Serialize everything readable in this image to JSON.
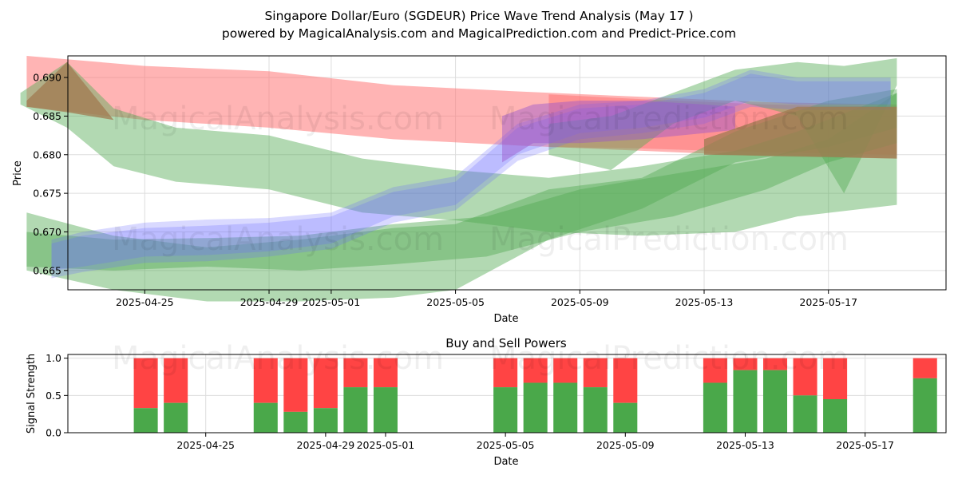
{
  "header": {
    "title": "Singapore Dollar/Euro (SGDEUR) Price Wave Trend Analysis (May 17 )",
    "subtitle": "powered by MagicalAnalysis.com and MagicalPrediction.com and Predict-Price.com"
  },
  "watermarks": [
    "MagicalAnalysis.com",
    "MagicalPrediction.com"
  ],
  "colors": {
    "red": "#ff4444",
    "green": "#4aa84a",
    "blue": "#5555ff",
    "price_red": "#ff7777",
    "price_green": "#55aa55",
    "price_blue": "#6666ff"
  },
  "chart_data": [
    {
      "type": "area",
      "title": "",
      "xlabel": "Date",
      "ylabel": "Price",
      "ylim": [
        0.6625,
        0.6928
      ],
      "x_start": "2025-04-21",
      "x_end": "2025-05-20",
      "xticks": [
        {
          "day": 4,
          "label": "2025-04-25"
        },
        {
          "day": 8,
          "label": "2025-04-29"
        },
        {
          "day": 10,
          "label": "2025-05-01"
        },
        {
          "day": 14,
          "label": "2025-05-05"
        },
        {
          "day": 18,
          "label": "2025-05-09"
        },
        {
          "day": 22,
          "label": "2025-05-13"
        },
        {
          "day": 26,
          "label": "2025-05-17"
        }
      ],
      "yticks": [
        "0.665",
        "0.670",
        "0.675",
        "0.680",
        "0.685",
        "0.690"
      ],
      "grid": true,
      "series": [
        {
          "name": "red-band-1",
          "color": "red",
          "x": [
            0.2,
            4.0,
            8.0,
            12.0,
            16.0,
            20.0,
            24.0,
            28.2
          ],
          "upper": [
            0.6928,
            0.6915,
            0.6908,
            0.689,
            0.6882,
            0.6875,
            0.6868,
            0.6865
          ],
          "lower": [
            0.6862,
            0.6845,
            0.6835,
            0.682,
            0.6812,
            0.6805,
            0.6798,
            0.6795
          ]
        },
        {
          "name": "red-band-2",
          "color": "red",
          "x": [
            17.0,
            20.0,
            24.0,
            28.2
          ],
          "upper": [
            0.6878,
            0.6872,
            0.6865,
            0.6862
          ],
          "lower": [
            0.681,
            0.6808,
            0.6803,
            0.68
          ]
        },
        {
          "name": "green-band-1",
          "color": "green",
          "x": [
            0.0,
            1.5,
            3.0,
            5.0,
            8.0,
            11.0,
            14.0,
            17.0,
            20.0,
            23.0,
            25.0,
            28.2
          ],
          "upper": [
            0.688,
            0.692,
            0.686,
            0.6835,
            0.6825,
            0.6795,
            0.678,
            0.677,
            0.6785,
            0.6805,
            0.683,
            0.688
          ],
          "lower": [
            0.6865,
            0.6835,
            0.6785,
            0.6765,
            0.6755,
            0.6725,
            0.6715,
            0.67,
            0.6695,
            0.67,
            0.672,
            0.6735
          ]
        },
        {
          "name": "green-band-2",
          "color": "green",
          "x": [
            0.2,
            3.0,
            6.0,
            9.0,
            12.0,
            15.0,
            18.0,
            21.0,
            24.0,
            26.0,
            28.2
          ],
          "upper": [
            0.67,
            0.669,
            0.6692,
            0.6695,
            0.671,
            0.672,
            0.6755,
            0.6775,
            0.6795,
            0.682,
            0.688
          ],
          "lower": [
            0.6655,
            0.665,
            0.6655,
            0.665,
            0.6658,
            0.6668,
            0.67,
            0.672,
            0.6755,
            0.679,
            0.6815
          ]
        },
        {
          "name": "green-band-3",
          "color": "green",
          "x": [
            0.2,
            3.0,
            6.0,
            9.0,
            12.0,
            14.0,
            17.0,
            20.0,
            23.0,
            26.0,
            28.2
          ],
          "upper": [
            0.6725,
            0.6695,
            0.668,
            0.669,
            0.6705,
            0.671,
            0.6755,
            0.677,
            0.683,
            0.687,
            0.6885
          ],
          "lower": [
            0.665,
            0.6625,
            0.661,
            0.661,
            0.6615,
            0.6625,
            0.669,
            0.673,
            0.679,
            0.681,
            0.6835
          ]
        },
        {
          "name": "green-band-4",
          "color": "green",
          "x": [
            17.0,
            19.0,
            21.0,
            23.0,
            25.0,
            26.5,
            28.2
          ],
          "upper": [
            0.684,
            0.685,
            0.688,
            0.691,
            0.692,
            0.6915,
            0.6925
          ],
          "lower": [
            0.68,
            0.678,
            0.684,
            0.687,
            0.685,
            0.675,
            0.689
          ]
        },
        {
          "name": "blue-band-1",
          "color": "blue",
          "x": [
            1.0,
            2.0,
            4.0,
            6.0,
            8.0,
            10.0,
            12.0,
            14.0,
            16.0,
            18.0,
            20.0,
            22.0,
            23.5,
            25.0,
            28.0
          ],
          "upper": [
            0.6685,
            0.6695,
            0.6705,
            0.6708,
            0.6712,
            0.672,
            0.6752,
            0.6765,
            0.6835,
            0.686,
            0.6865,
            0.688,
            0.6905,
            0.6895,
            0.6895
          ],
          "lower": [
            0.665,
            0.6655,
            0.6668,
            0.667,
            0.6675,
            0.6685,
            0.672,
            0.6735,
            0.68,
            0.6828,
            0.6835,
            0.6848,
            0.687,
            0.6865,
            0.6865
          ]
        },
        {
          "name": "blue-band-2",
          "color": "blue",
          "x": [
            1.0,
            2.0,
            4.0,
            6.0,
            8.0,
            10.0,
            12.0,
            14.0,
            16.0,
            18.0,
            20.0,
            22.0,
            23.5,
            25.0,
            28.0
          ],
          "upper": [
            0.669,
            0.67,
            0.6712,
            0.6716,
            0.6718,
            0.6725,
            0.6758,
            0.6772,
            0.684,
            0.6865,
            0.687,
            0.6885,
            0.691,
            0.69,
            0.69
          ],
          "lower": [
            0.664,
            0.6648,
            0.666,
            0.6662,
            0.6668,
            0.6678,
            0.6712,
            0.6728,
            0.6792,
            0.682,
            0.6828,
            0.684,
            0.6862,
            0.6858,
            0.6858
          ]
        },
        {
          "name": "purple-band",
          "color": "purple",
          "x": [
            15.5,
            16.5,
            18.0,
            20.0,
            22.0,
            23.0
          ],
          "upper": [
            0.685,
            0.6865,
            0.687,
            0.687,
            0.6865,
            0.6862
          ],
          "lower": [
            0.679,
            0.6815,
            0.6815,
            0.682,
            0.6828,
            0.6832
          ]
        },
        {
          "name": "brown-band-1",
          "color": "brown",
          "x": [
            0.2,
            1.5,
            3.0
          ],
          "upper": [
            0.687,
            0.692,
            0.6845
          ],
          "lower": [
            0.6862,
            0.6855,
            0.6845
          ]
        },
        {
          "name": "brown-band-2",
          "color": "brown",
          "x": [
            22.0,
            25.0,
            28.2
          ],
          "upper": [
            0.682,
            0.6862,
            0.6862
          ],
          "lower": [
            0.68,
            0.6798,
            0.6795
          ]
        }
      ]
    },
    {
      "type": "bar",
      "title": "Buy and Sell Powers",
      "xlabel": "Date",
      "ylabel": "Signal Strength",
      "ylim": [
        0,
        1.05
      ],
      "yticks": [
        "0.0",
        "0.5",
        "1.0"
      ],
      "xticks": [
        {
          "day": 4,
          "label": "2025-04-25"
        },
        {
          "day": 8,
          "label": "2025-04-29"
        },
        {
          "day": 10,
          "label": "2025-05-01"
        },
        {
          "day": 14,
          "label": "2025-05-05"
        },
        {
          "day": 18,
          "label": "2025-05-09"
        },
        {
          "day": 22,
          "label": "2025-05-13"
        },
        {
          "day": 26,
          "label": "2025-05-17"
        }
      ],
      "grid": true,
      "days": [
        2,
        3,
        6,
        7,
        8,
        9,
        10,
        14,
        15,
        16,
        17,
        18,
        21,
        22,
        23,
        24,
        25,
        28
      ],
      "buy": [
        0.33,
        0.4,
        0.4,
        0.28,
        0.33,
        0.61,
        0.61,
        0.61,
        0.67,
        0.67,
        0.61,
        0.4,
        0.67,
        0.84,
        0.84,
        0.5,
        0.45,
        0.73
      ],
      "sell_total": 1.0
    }
  ]
}
